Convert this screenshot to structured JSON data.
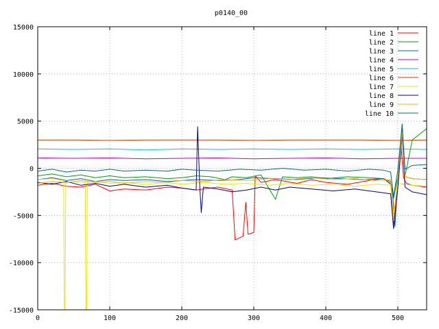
{
  "chart_data": {
    "type": "line",
    "title": "p0140_00",
    "xlabel": "",
    "ylabel": "",
    "xlim": [
      0,
      540
    ],
    "ylim": [
      -15000,
      15000
    ],
    "x_ticks": [
      0,
      100,
      200,
      300,
      400,
      500
    ],
    "y_ticks": [
      -15000,
      -10000,
      -5000,
      0,
      5000,
      10000,
      15000
    ],
    "grid": true,
    "legend_position": "top-right",
    "series": [
      {
        "name": "line 1",
        "color": "#ff0000",
        "points": [
          [
            0,
            -1800
          ],
          [
            20,
            -1600
          ],
          [
            40,
            -1900
          ],
          [
            60,
            -2000
          ],
          [
            80,
            -1700
          ],
          [
            100,
            -2400
          ],
          [
            120,
            -2200
          ],
          [
            150,
            -2300
          ],
          [
            180,
            -2000
          ],
          [
            200,
            -2100
          ],
          [
            220,
            -2300
          ],
          [
            230,
            -2200
          ],
          [
            250,
            -2000
          ],
          [
            270,
            -2300
          ],
          [
            274,
            -7600
          ],
          [
            285,
            -7200
          ],
          [
            289,
            -3600
          ],
          [
            292,
            -7000
          ],
          [
            300,
            -6800
          ],
          [
            302,
            -800
          ],
          [
            310,
            -1500
          ],
          [
            330,
            -1200
          ],
          [
            360,
            -1600
          ],
          [
            380,
            -1200
          ],
          [
            400,
            -1500
          ],
          [
            430,
            -1700
          ],
          [
            460,
            -1300
          ],
          [
            480,
            -1100
          ],
          [
            490,
            -1400
          ],
          [
            494,
            -5800
          ],
          [
            500,
            -1200
          ],
          [
            504,
            2600
          ],
          [
            508,
            -1000
          ],
          [
            512,
            -1600
          ],
          [
            520,
            -1800
          ],
          [
            540,
            -2000
          ]
        ]
      },
      {
        "name": "line 2",
        "color": "#00a000",
        "points": [
          [
            0,
            -800
          ],
          [
            20,
            -600
          ],
          [
            40,
            -900
          ],
          [
            60,
            -700
          ],
          [
            80,
            -1000
          ],
          [
            100,
            -800
          ],
          [
            120,
            -1000
          ],
          [
            150,
            -900
          ],
          [
            180,
            -1100
          ],
          [
            200,
            -1000
          ],
          [
            220,
            -800
          ],
          [
            240,
            -900
          ],
          [
            260,
            -1200
          ],
          [
            270,
            -900
          ],
          [
            290,
            -1000
          ],
          [
            310,
            -700
          ],
          [
            330,
            -3300
          ],
          [
            340,
            -900
          ],
          [
            360,
            -1000
          ],
          [
            380,
            -900
          ],
          [
            400,
            -1100
          ],
          [
            430,
            -900
          ],
          [
            460,
            -1000
          ],
          [
            480,
            -1100
          ],
          [
            490,
            -1600
          ],
          [
            494,
            -3200
          ],
          [
            500,
            -900
          ],
          [
            506,
            3400
          ],
          [
            510,
            -800
          ],
          [
            520,
            3000
          ],
          [
            530,
            3600
          ],
          [
            540,
            4200
          ]
        ]
      },
      {
        "name": "line 3",
        "color": "#0060c0",
        "points": [
          [
            0,
            -1200
          ],
          [
            20,
            -1000
          ],
          [
            40,
            -1300
          ],
          [
            60,
            -1100
          ],
          [
            80,
            -1400
          ],
          [
            100,
            -1200
          ],
          [
            120,
            -1300
          ],
          [
            150,
            -1200
          ],
          [
            180,
            -1400
          ],
          [
            200,
            -1300
          ],
          [
            220,
            -1200
          ],
          [
            250,
            -1300
          ],
          [
            280,
            -1200
          ],
          [
            300,
            -1000
          ],
          [
            330,
            -1100
          ],
          [
            360,
            -1200
          ],
          [
            390,
            -1000
          ],
          [
            420,
            -1100
          ],
          [
            450,
            -1200
          ],
          [
            480,
            -1100
          ],
          [
            492,
            -1800
          ],
          [
            496,
            -6200
          ],
          [
            500,
            -1100
          ],
          [
            506,
            4500
          ],
          [
            510,
            -900
          ],
          [
            520,
            -1100
          ],
          [
            540,
            -1200
          ]
        ]
      },
      {
        "name": "line 4",
        "color": "#c000c0",
        "points": [
          [
            0,
            1100
          ],
          [
            50,
            1050
          ],
          [
            100,
            1100
          ],
          [
            150,
            1000
          ],
          [
            200,
            1050
          ],
          [
            250,
            1100
          ],
          [
            300,
            1000
          ],
          [
            350,
            1050
          ],
          [
            400,
            1100
          ],
          [
            450,
            1000
          ],
          [
            500,
            1050
          ],
          [
            540,
            1050
          ]
        ]
      },
      {
        "name": "line 5",
        "color": "#00c8c8",
        "points": [
          [
            0,
            2050
          ],
          [
            50,
            2000
          ],
          [
            100,
            2050
          ],
          [
            150,
            1950
          ],
          [
            200,
            2050
          ],
          [
            250,
            2000
          ],
          [
            300,
            2050
          ],
          [
            350,
            2000
          ],
          [
            400,
            2050
          ],
          [
            450,
            2000
          ],
          [
            500,
            2050
          ],
          [
            540,
            2000
          ]
        ]
      },
      {
        "name": "line 6",
        "color": "#c04000",
        "points": [
          [
            0,
            3000
          ],
          [
            50,
            3000
          ],
          [
            100,
            2950
          ],
          [
            150,
            3000
          ],
          [
            200,
            3000
          ],
          [
            250,
            3000
          ],
          [
            300,
            2950
          ],
          [
            350,
            3000
          ],
          [
            400,
            3000
          ],
          [
            450,
            3000
          ],
          [
            500,
            2950
          ],
          [
            540,
            3000
          ]
        ]
      },
      {
        "name": "line 7",
        "color": "#e8e800",
        "points": [
          [
            0,
            -1200
          ],
          [
            20,
            -1100
          ],
          [
            36,
            -1300
          ],
          [
            37,
            -15000
          ],
          [
            38,
            -15000
          ],
          [
            39,
            -1500
          ],
          [
            50,
            -1400
          ],
          [
            66,
            -1500
          ],
          [
            67,
            -15000
          ],
          [
            68,
            -15000
          ],
          [
            69,
            -1500
          ],
          [
            80,
            -1400
          ],
          [
            100,
            -1600
          ],
          [
            120,
            -1500
          ],
          [
            150,
            -1700
          ],
          [
            180,
            -1500
          ],
          [
            200,
            -1700
          ],
          [
            230,
            -1500
          ],
          [
            260,
            -1700
          ],
          [
            290,
            -1600
          ],
          [
            320,
            -1800
          ],
          [
            350,
            -1600
          ],
          [
            380,
            -1800
          ],
          [
            410,
            -1700
          ],
          [
            440,
            -1900
          ],
          [
            470,
            -1700
          ],
          [
            490,
            -1800
          ],
          [
            494,
            -4800
          ],
          [
            500,
            -1600
          ],
          [
            520,
            -1800
          ],
          [
            540,
            -1900
          ]
        ]
      },
      {
        "name": "line 8",
        "color": "#000080",
        "points": [
          [
            0,
            -1500
          ],
          [
            20,
            -1700
          ],
          [
            40,
            -1400
          ],
          [
            60,
            -1800
          ],
          [
            80,
            -1600
          ],
          [
            100,
            -1900
          ],
          [
            120,
            -1700
          ],
          [
            150,
            -2000
          ],
          [
            180,
            -1800
          ],
          [
            200,
            -2100
          ],
          [
            210,
            -2200
          ],
          [
            220,
            -2300
          ],
          [
            222,
            4400
          ],
          [
            225,
            -2000
          ],
          [
            227,
            -4700
          ],
          [
            230,
            -2000
          ],
          [
            250,
            -2200
          ],
          [
            270,
            -2500
          ],
          [
            290,
            -2300
          ],
          [
            310,
            -2000
          ],
          [
            330,
            -2300
          ],
          [
            350,
            -2000
          ],
          [
            380,
            -2200
          ],
          [
            410,
            -2400
          ],
          [
            440,
            -2200
          ],
          [
            470,
            -2500
          ],
          [
            490,
            -2700
          ],
          [
            494,
            -6400
          ],
          [
            500,
            -2100
          ],
          [
            506,
            3600
          ],
          [
            510,
            -2000
          ],
          [
            520,
            -2500
          ],
          [
            540,
            -2800
          ]
        ]
      },
      {
        "name": "line 9",
        "color": "#ffb000",
        "points": [
          [
            0,
            -1600
          ],
          [
            20,
            -1400
          ],
          [
            40,
            -1500
          ],
          [
            60,
            -1300
          ],
          [
            80,
            -1500
          ],
          [
            100,
            -1400
          ],
          [
            120,
            -1600
          ],
          [
            150,
            -1400
          ],
          [
            180,
            -1500
          ],
          [
            200,
            -1300
          ],
          [
            230,
            -1400
          ],
          [
            260,
            -1200
          ],
          [
            290,
            -1300
          ],
          [
            320,
            -1100
          ],
          [
            350,
            -1200
          ],
          [
            380,
            -1000
          ],
          [
            410,
            -1200
          ],
          [
            440,
            -1100
          ],
          [
            470,
            -1300
          ],
          [
            490,
            -1200
          ],
          [
            494,
            -5600
          ],
          [
            500,
            -1000
          ],
          [
            506,
            3800
          ],
          [
            510,
            -900
          ],
          [
            520,
            -1100
          ],
          [
            540,
            -1200
          ]
        ]
      },
      {
        "name": "line 10",
        "color": "#006880",
        "points": [
          [
            0,
            -300
          ],
          [
            20,
            -100
          ],
          [
            40,
            -400
          ],
          [
            60,
            -200
          ],
          [
            80,
            -300
          ],
          [
            100,
            -100
          ],
          [
            120,
            -300
          ],
          [
            150,
            -200
          ],
          [
            180,
            -300
          ],
          [
            200,
            -100
          ],
          [
            220,
            -200
          ],
          [
            250,
            -300
          ],
          [
            280,
            -100
          ],
          [
            310,
            -200
          ],
          [
            340,
            0
          ],
          [
            370,
            -200
          ],
          [
            400,
            -100
          ],
          [
            430,
            -300
          ],
          [
            460,
            -100
          ],
          [
            480,
            -200
          ],
          [
            490,
            -400
          ],
          [
            494,
            -3000
          ],
          [
            500,
            -200
          ],
          [
            506,
            4700
          ],
          [
            510,
            -100
          ],
          [
            520,
            300
          ],
          [
            540,
            400
          ]
        ]
      }
    ]
  }
}
